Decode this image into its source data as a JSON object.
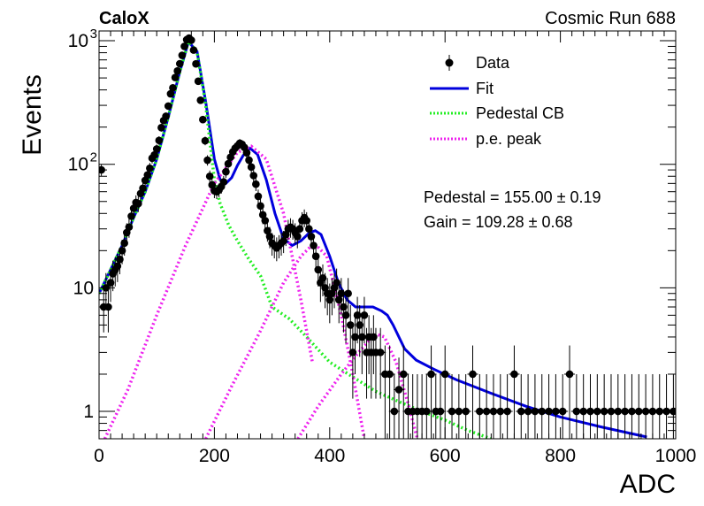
{
  "header": {
    "left": "CaloX",
    "right": "Cosmic Run 688"
  },
  "stats": {
    "pedestal": "Pedestal = 155.00 ± 0.19",
    "gain": "Gain = 109.28 ± 0.68"
  },
  "legend": [
    {
      "label": "Data",
      "style": "marker",
      "color": "#000000"
    },
    {
      "label": "Fit",
      "style": "solid",
      "color": "#0000dd"
    },
    {
      "label": "Pedestal CB",
      "style": "dotted",
      "color": "#22ee22"
    },
    {
      "label": "p.e. peak",
      "style": "dotted",
      "color": "#ee22ee"
    }
  ],
  "chart_data": {
    "type": "scatter",
    "xlabel": "ADC",
    "ylabel": "Events",
    "xlim": [
      0,
      1000
    ],
    "ylim": [
      0.6,
      1200
    ],
    "yscale": "log",
    "x_ticks": [
      "0",
      "200",
      "400",
      "600",
      "800",
      "1000"
    ],
    "y_ticks": [
      {
        "value": 1,
        "label": "1"
      },
      {
        "value": 10,
        "label": "10"
      },
      {
        "value": 100,
        "label": "10",
        "exp": "2"
      },
      {
        "value": 1000,
        "label": "10",
        "exp": "3"
      }
    ],
    "grid": false,
    "legend_position": "top-right",
    "series": [
      {
        "name": "Data",
        "kind": "points",
        "x": [
          4,
          8,
          12,
          16,
          20,
          24,
          28,
          32,
          36,
          40,
          44,
          48,
          52,
          56,
          60,
          64,
          68,
          72,
          76,
          80,
          84,
          88,
          92,
          96,
          100,
          104,
          108,
          112,
          116,
          120,
          124,
          128,
          132,
          136,
          140,
          144,
          148,
          152,
          156,
          160,
          164,
          168,
          172,
          176,
          180,
          184,
          188,
          192,
          196,
          200,
          204,
          208,
          212,
          216,
          220,
          224,
          228,
          232,
          236,
          240,
          244,
          248,
          252,
          256,
          260,
          264,
          268,
          272,
          276,
          280,
          284,
          288,
          292,
          296,
          300,
          304,
          308,
          312,
          316,
          320,
          324,
          328,
          332,
          336,
          340,
          344,
          348,
          352,
          356,
          360,
          364,
          368,
          372,
          376,
          380,
          384,
          388,
          392,
          396,
          400,
          404,
          408,
          412,
          416,
          420,
          424,
          428,
          432,
          436,
          440,
          444,
          448,
          452,
          456,
          460,
          464,
          468,
          472,
          476,
          480,
          488,
          496,
          504,
          512,
          520,
          528,
          536,
          544,
          552,
          560,
          568,
          576,
          584,
          592,
          600,
          612,
          624,
          636,
          648,
          660,
          672,
          684,
          696,
          708,
          720,
          732,
          744,
          756,
          768,
          780,
          792,
          804,
          816,
          828,
          840,
          852,
          864,
          876,
          888,
          900,
          912,
          924,
          936,
          948,
          960,
          972,
          984,
          996
        ],
        "y": [
          90,
          7,
          10,
          7,
          11,
          13,
          14,
          15,
          17,
          20,
          23,
          28,
          31,
          38,
          44,
          49,
          48,
          58,
          64,
          74,
          82,
          93,
          112,
          119,
          133,
          156,
          198,
          226,
          245,
          296,
          372,
          416,
          504,
          570,
          652,
          762,
          900,
          1020,
          1050,
          1010,
          840,
          650,
          470,
          330,
          230,
          155,
          108,
          80,
          68,
          61,
          60,
          62,
          66,
          72,
          87,
          101,
          114,
          126,
          135,
          141,
          148,
          145,
          137,
          124,
          108,
          95,
          81,
          69,
          55,
          46,
          39,
          35,
          29,
          26,
          23,
          22,
          21,
          22,
          23,
          24,
          27,
          30,
          31,
          30,
          28,
          26,
          30,
          35,
          37,
          35,
          30,
          26,
          22,
          18,
          14,
          11,
          12,
          10,
          9,
          8,
          9,
          10,
          11,
          8,
          9,
          7,
          6,
          9,
          5,
          3,
          4,
          6,
          5,
          4,
          6,
          3,
          4,
          3,
          4,
          3,
          3,
          2,
          2,
          1,
          1.5,
          2,
          1,
          1,
          1,
          1,
          1,
          2,
          1,
          1,
          2,
          1,
          1,
          1,
          2,
          1,
          1,
          1,
          1,
          1,
          2,
          1,
          1,
          1,
          1,
          1,
          1,
          1,
          2,
          1,
          1,
          1,
          1,
          1,
          1,
          1,
          1,
          1,
          1,
          1,
          1,
          1,
          1,
          1
        ],
        "color": "#000000"
      },
      {
        "name": "Fit",
        "kind": "line",
        "style": "solid",
        "color": "#0000dd",
        "x": [
          0,
          20,
          40,
          60,
          80,
          100,
          120,
          140,
          155,
          170,
          185,
          200,
          210,
          220,
          230,
          240,
          250,
          262,
          275,
          290,
          305,
          320,
          335,
          350,
          365,
          375,
          385,
          400,
          415,
          430,
          445,
          460,
          475,
          490,
          500,
          510,
          520,
          530,
          550,
          580,
          620,
          680,
          740,
          800,
          870,
          950
        ],
        "y": [
          9,
          14,
          22,
          37,
          60,
          110,
          240,
          560,
          980,
          820,
          320,
          110,
          75,
          70,
          78,
          98,
          118,
          135,
          120,
          75,
          40,
          25,
          22,
          24,
          28,
          29,
          27,
          18,
          11,
          8,
          7,
          7,
          7,
          6.5,
          6,
          5,
          4,
          3.2,
          2.6,
          2.2,
          1.8,
          1.4,
          1.1,
          0.9,
          0.75,
          0.62
        ]
      },
      {
        "name": "Pedestal CB",
        "kind": "line",
        "style": "dotted",
        "color": "#22ee22",
        "x": [
          0,
          20,
          40,
          60,
          80,
          100,
          120,
          140,
          155,
          170,
          185,
          200,
          210,
          225,
          240,
          260,
          280,
          300,
          330,
          360,
          400,
          440,
          480,
          520,
          560,
          600,
          640,
          680
        ],
        "y": [
          9,
          14,
          22,
          37,
          60,
          110,
          240,
          560,
          980,
          820,
          300,
          75,
          48,
          32,
          24,
          17,
          12.5,
          7,
          5.6,
          4,
          2.5,
          1.9,
          1.45,
          1.2,
          1.0,
          0.85,
          0.7,
          0.6
        ]
      },
      {
        "name": "p.e. peak",
        "kind": "line",
        "style": "dotted",
        "color": "#ee22ee",
        "x": [
          10,
          50,
          100,
          150,
          200,
          240,
          264,
          290,
          320,
          350,
          370
        ],
        "y": [
          0.6,
          1.5,
          6,
          22,
          70,
          125,
          140,
          110,
          40,
          8,
          2.5
        ]
      },
      {
        "name": "p.e. peak",
        "kind": "line",
        "style": "dotted",
        "color": "#ee22ee",
        "x": [
          185,
          230,
          280,
          320,
          350,
          373,
          395,
          420,
          440,
          460
        ],
        "y": [
          0.6,
          1.6,
          4.5,
          11,
          18,
          23,
          18,
          6,
          2,
          0.6
        ]
      },
      {
        "name": "p.e. peak",
        "kind": "line",
        "style": "dotted",
        "color": "#ee22ee",
        "x": [
          345,
          380,
          420,
          450,
          470,
          482,
          495,
          515,
          535,
          552
        ],
        "y": [
          0.6,
          1.1,
          2.0,
          3.0,
          3.8,
          4.2,
          4.0,
          2.5,
          1.2,
          0.6
        ]
      }
    ]
  }
}
